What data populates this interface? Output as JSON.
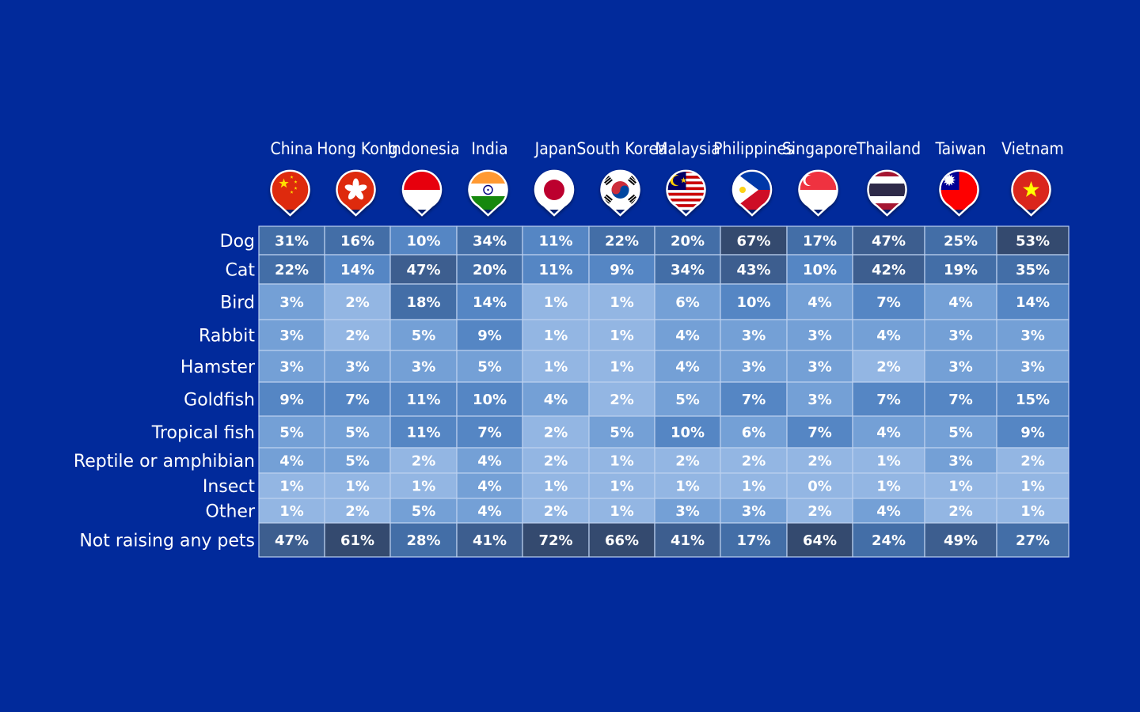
{
  "chart_data": {
    "type": "heatmap",
    "title": "",
    "columns": [
      "China",
      "Hong Kong",
      "Indonesia",
      "India",
      "Japan",
      "South Korea",
      "Malaysia",
      "Philippines",
      "Singapore",
      "Thailand",
      "Taiwan",
      "Vietnam"
    ],
    "flag_icons": [
      "china-flag-icon",
      "hong-kong-flag-icon",
      "indonesia-flag-icon",
      "india-flag-icon",
      "japan-flag-icon",
      "south-korea-flag-icon",
      "malaysia-flag-icon",
      "philippines-flag-icon",
      "singapore-flag-icon",
      "thailand-flag-icon",
      "taiwan-flag-icon",
      "vietnam-flag-icon"
    ],
    "rows": [
      "Dog",
      "Cat",
      "Bird",
      "Rabbit",
      "Hamster",
      "Goldfish",
      "Tropical fish",
      "Reptile or amphibian",
      "Insect",
      "Other",
      "Not raising any pets"
    ],
    "values": [
      [
        31,
        16,
        10,
        34,
        11,
        22,
        20,
        67,
        17,
        47,
        25,
        53
      ],
      [
        22,
        14,
        47,
        20,
        11,
        9,
        34,
        43,
        10,
        42,
        19,
        35
      ],
      [
        3,
        2,
        18,
        14,
        1,
        1,
        6,
        10,
        4,
        7,
        4,
        14
      ],
      [
        3,
        2,
        5,
        9,
        1,
        1,
        4,
        3,
        3,
        4,
        3,
        3
      ],
      [
        3,
        3,
        3,
        5,
        1,
        1,
        4,
        3,
        3,
        2,
        3,
        3
      ],
      [
        9,
        7,
        11,
        10,
        4,
        2,
        5,
        7,
        3,
        7,
        7,
        15
      ],
      [
        5,
        5,
        11,
        7,
        2,
        5,
        10,
        6,
        7,
        4,
        5,
        9
      ],
      [
        4,
        5,
        2,
        4,
        2,
        1,
        2,
        2,
        2,
        1,
        3,
        2
      ],
      [
        1,
        1,
        1,
        4,
        1,
        1,
        1,
        1,
        0,
        1,
        1,
        1
      ],
      [
        1,
        2,
        5,
        4,
        2,
        1,
        3,
        3,
        2,
        4,
        2,
        1
      ],
      [
        47,
        61,
        28,
        41,
        72,
        66,
        41,
        17,
        64,
        24,
        49,
        27
      ]
    ],
    "value_suffix": "%",
    "colors": {
      "background": "#012a9b",
      "scale": [
        "#93b6e3",
        "#74a0d6",
        "#5586c4",
        "#436ea7",
        "#3d5e8f",
        "#344a6f"
      ],
      "grid": "#bcd0ef",
      "text": "#ffffff"
    }
  }
}
